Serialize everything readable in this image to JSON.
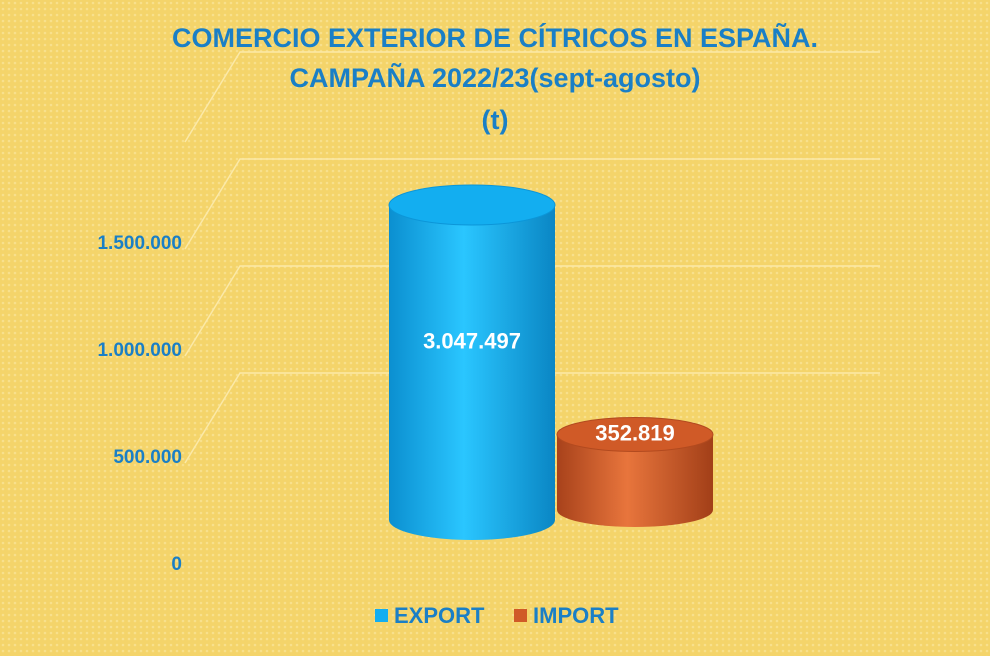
{
  "chart_data": {
    "type": "bar3d",
    "title": "COMERCIO EXTERIOR DE CÍTRICOS EN ESPAÑA.",
    "subtitle": "CAMPAÑA 2022/23(sept-agosto)",
    "unit_label": "(t)",
    "categories": [
      null
    ],
    "series": [
      {
        "name": "EXPORT",
        "color": "#13aef0",
        "values": [
          3047497
        ],
        "value_labels": [
          "3.047.497"
        ]
      },
      {
        "name": "IMPORT",
        "color": "#d05a27",
        "values": [
          352819
        ],
        "value_labels": [
          "352.819"
        ]
      }
    ],
    "ylim": [
      0,
      2000000
    ],
    "yticks": [
      0,
      {
        "value": 500000,
        "label": "500.000"
      },
      {
        "value": 1000000,
        "label": "1.000.000"
      },
      {
        "value": 1500000,
        "label": "1.500.000"
      }
    ],
    "grid": true,
    "legend": "bottom"
  }
}
